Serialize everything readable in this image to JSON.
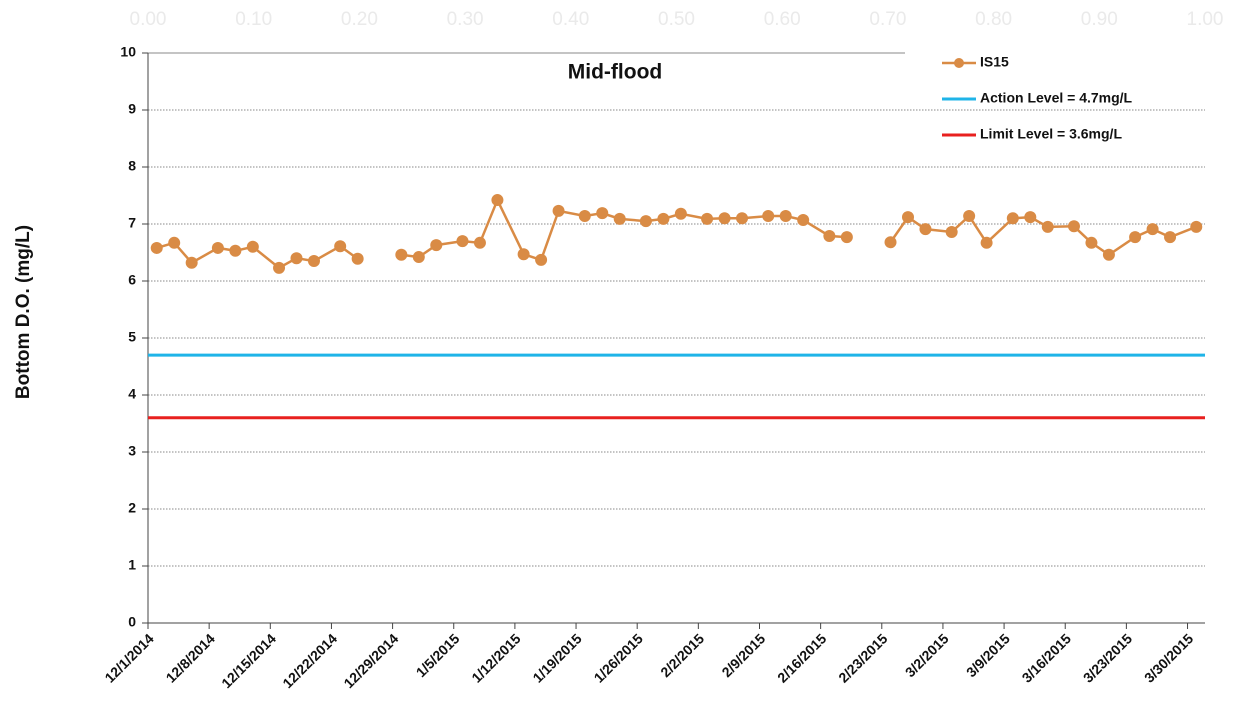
{
  "chart_data": {
    "type": "line",
    "title": "Mid-flood",
    "y_label": "Bottom D.O. (mg/L)",
    "ylim": [
      0,
      10
    ],
    "yticks": [
      0,
      1,
      2,
      3,
      4,
      5,
      6,
      7,
      8,
      9,
      10
    ],
    "grid": true,
    "legend": "top-right",
    "xlim": [
      "12/1/2014",
      "4/1/2015"
    ],
    "xticks": [
      "12/1/2014",
      "12/8/2014",
      "12/15/2014",
      "12/22/2014",
      "12/29/2014",
      "1/5/2015",
      "1/12/2015",
      "1/19/2015",
      "1/26/2015",
      "2/2/2015",
      "2/9/2015",
      "2/16/2015",
      "2/23/2015",
      "3/2/2015",
      "3/9/2015",
      "3/16/2015",
      "3/23/2015",
      "3/30/2015"
    ],
    "x2lim": [
      0,
      1
    ],
    "x2ticks": [
      {
        "value": 0,
        "label": "0.00"
      },
      {
        "value": 0.1,
        "label": "0.10"
      },
      {
        "value": 0.2,
        "label": "0.20"
      },
      {
        "value": 0.3,
        "label": "0.30"
      },
      {
        "value": 0.4,
        "label": "0.40"
      },
      {
        "value": 0.5,
        "label": "0.50"
      },
      {
        "value": 0.6,
        "label": "0.60"
      },
      {
        "value": 0.7,
        "label": "0.70"
      },
      {
        "value": 0.8,
        "label": "0.80"
      },
      {
        "value": 0.9,
        "label": "0.90"
      },
      {
        "value": 1,
        "label": "1.00"
      }
    ],
    "x": [
      "12/2/2014",
      "12/4/2014",
      "12/6/2014",
      "12/9/2014",
      "12/11/2014",
      "12/13/2014",
      "12/16/2014",
      "12/18/2014",
      "12/20/2014",
      "12/23/2014",
      "12/25/2014",
      "12/28/2014",
      "12/30/2014",
      "1/1/2015",
      "1/3/2015",
      "1/6/2015",
      "1/8/2015",
      "1/10/2015",
      "1/13/2015",
      "1/15/2015",
      "1/17/2015",
      "1/20/2015",
      "1/22/2015",
      "1/24/2015",
      "1/27/2015",
      "1/29/2015",
      "1/31/2015",
      "2/3/2015",
      "2/5/2015",
      "2/7/2015",
      "2/10/2015",
      "2/12/2015",
      "2/14/2015",
      "2/17/2015",
      "2/19/2015",
      "2/22/2015",
      "2/24/2015",
      "2/26/2015",
      "2/28/2015",
      "3/3/2015",
      "3/5/2015",
      "3/7/2015",
      "3/10/2015",
      "3/12/2015",
      "3/14/2015",
      "3/17/2015",
      "3/19/2015",
      "3/21/2015",
      "3/24/2015",
      "3/26/2015",
      "3/28/2015",
      "3/31/2015"
    ],
    "series": [
      {
        "name": "IS15",
        "color": "#d98b45",
        "values": [
          6.58,
          6.67,
          6.32,
          6.58,
          6.53,
          6.6,
          6.23,
          6.4,
          6.35,
          6.61,
          6.39,
          null,
          6.46,
          6.42,
          6.63,
          6.7,
          6.67,
          7.42,
          6.47,
          6.37,
          7.23,
          7.14,
          7.19,
          7.09,
          7.05,
          7.09,
          7.18,
          7.09,
          7.1,
          7.1,
          7.14,
          7.14,
          7.07,
          6.79,
          6.77,
          null,
          6.68,
          7.12,
          6.91,
          6.86,
          7.14,
          6.67,
          7.1,
          7.12,
          6.95,
          6.96,
          6.67,
          6.46,
          6.77,
          6.91,
          6.77,
          6.95
        ]
      }
    ],
    "reference_lines": [
      {
        "name": "Action Level = 4.7mg/L",
        "value": 4.7,
        "color": "#1fb4e8"
      },
      {
        "name": "Limit Level = 3.6mg/L",
        "value": 3.6,
        "color": "#e8201f"
      }
    ]
  }
}
